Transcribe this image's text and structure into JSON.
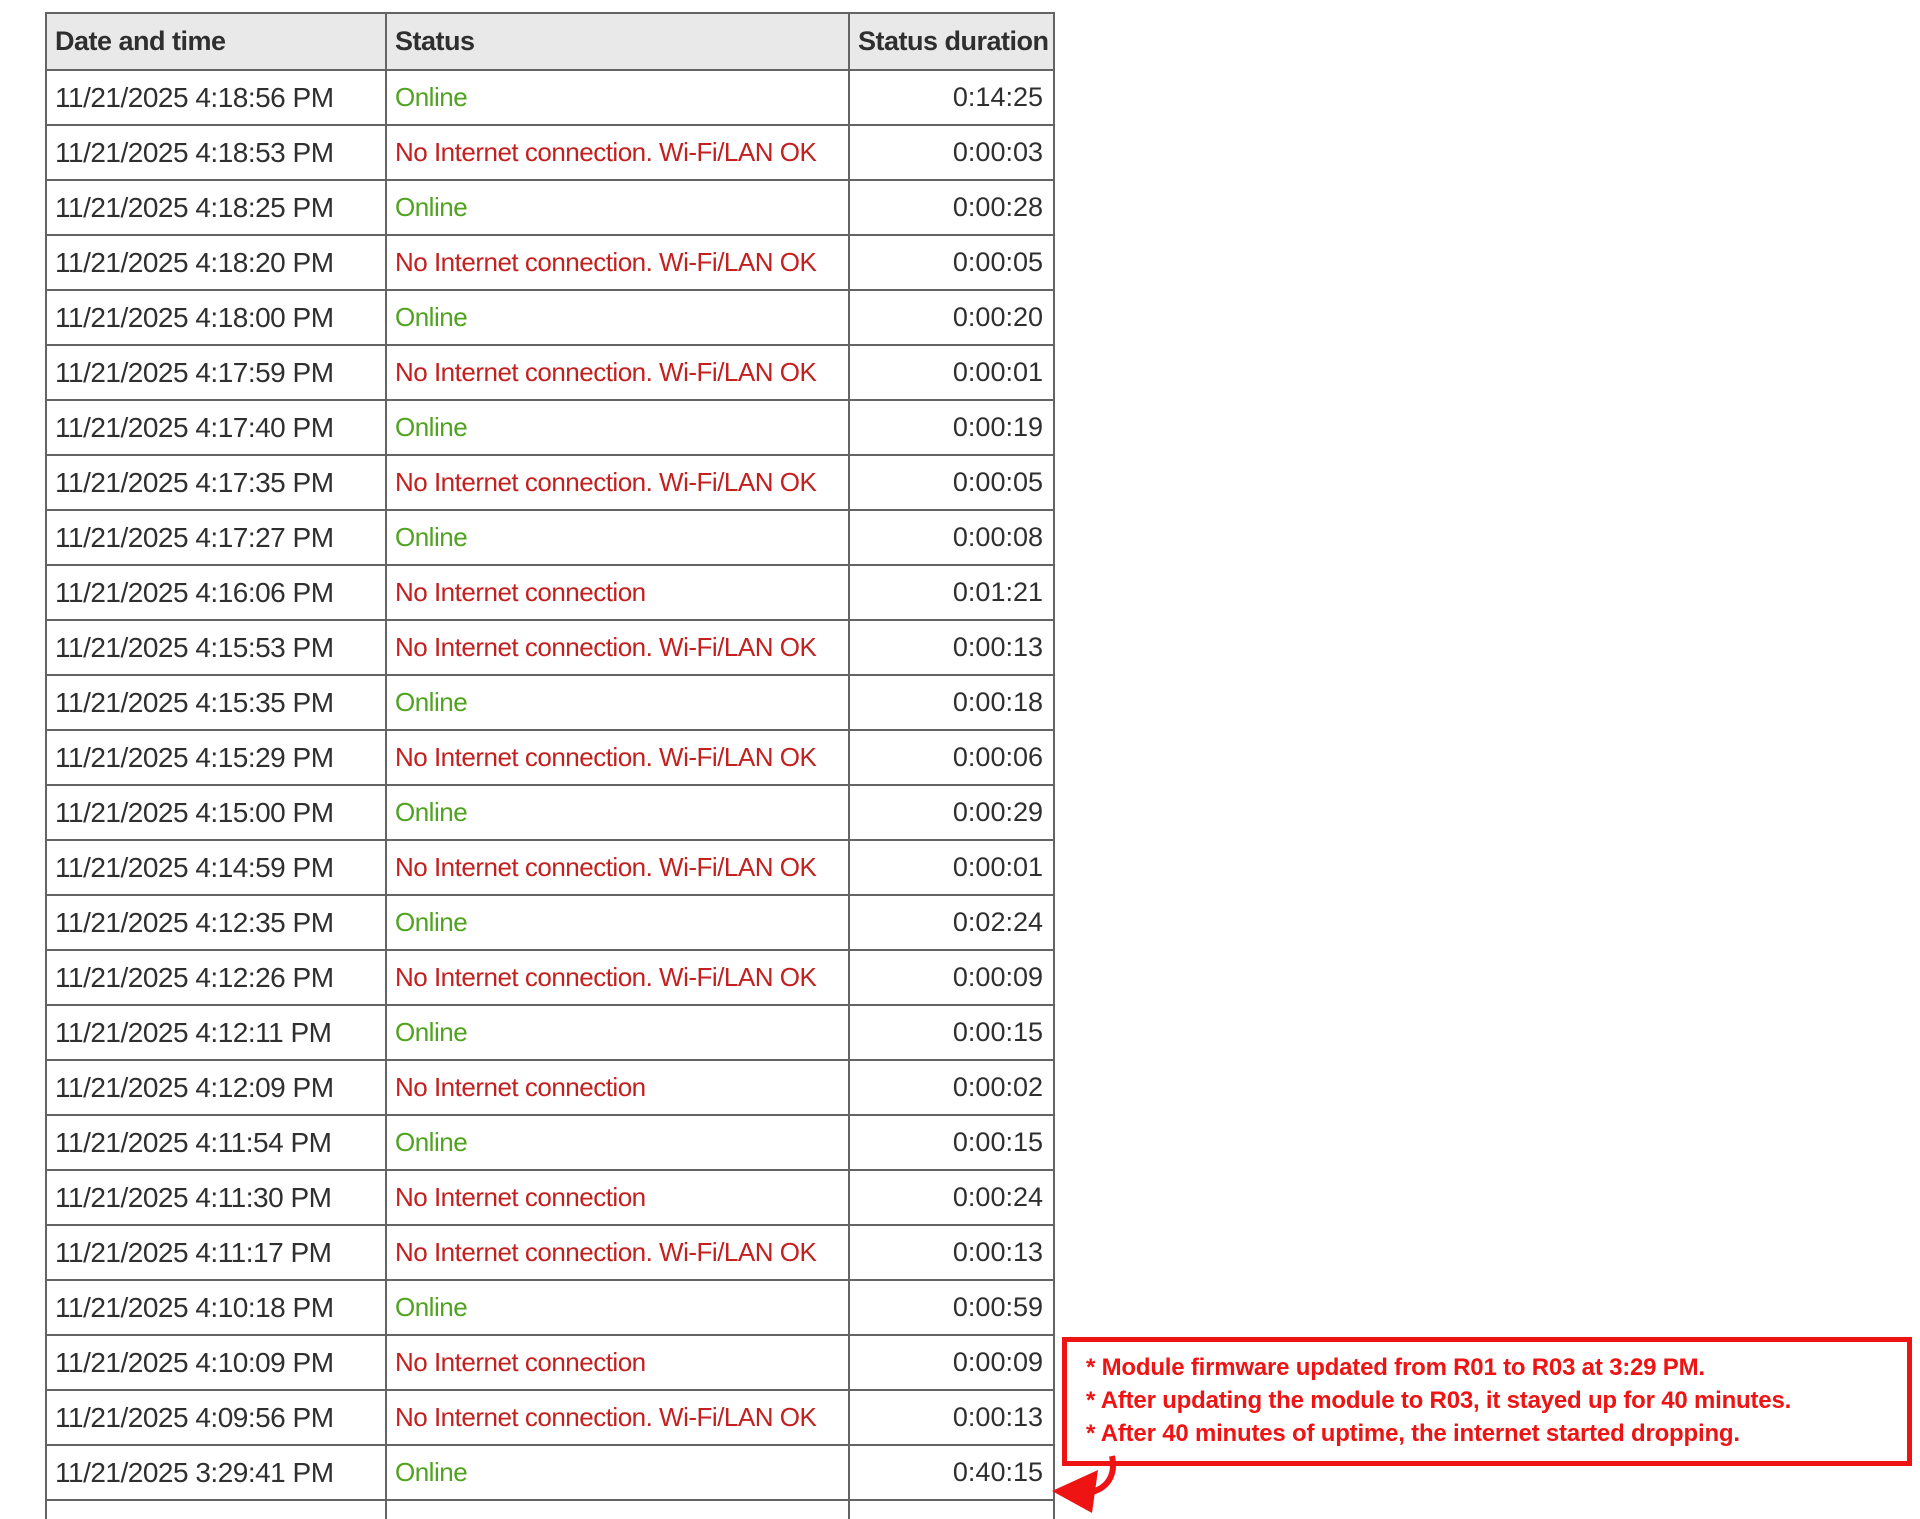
{
  "table": {
    "headers": [
      "Date and time",
      "Status",
      "Status duration"
    ],
    "rows": [
      {
        "datetime": "11/21/2025 4:18:56 PM",
        "status": "Online",
        "duration": "0:14:25"
      },
      {
        "datetime": "11/21/2025 4:18:53 PM",
        "status": "No Internet connection. Wi-Fi/LAN OK",
        "duration": "0:00:03"
      },
      {
        "datetime": "11/21/2025 4:18:25 PM",
        "status": "Online",
        "duration": "0:00:28"
      },
      {
        "datetime": "11/21/2025 4:18:20 PM",
        "status": "No Internet connection. Wi-Fi/LAN OK",
        "duration": "0:00:05"
      },
      {
        "datetime": "11/21/2025 4:18:00 PM",
        "status": "Online",
        "duration": "0:00:20"
      },
      {
        "datetime": "11/21/2025 4:17:59 PM",
        "status": "No Internet connection. Wi-Fi/LAN OK",
        "duration": "0:00:01"
      },
      {
        "datetime": "11/21/2025 4:17:40 PM",
        "status": "Online",
        "duration": "0:00:19"
      },
      {
        "datetime": "11/21/2025 4:17:35 PM",
        "status": "No Internet connection. Wi-Fi/LAN OK",
        "duration": "0:00:05"
      },
      {
        "datetime": "11/21/2025 4:17:27 PM",
        "status": "Online",
        "duration": "0:00:08"
      },
      {
        "datetime": "11/21/2025 4:16:06 PM",
        "status": "No Internet connection",
        "duration": "0:01:21"
      },
      {
        "datetime": "11/21/2025 4:15:53 PM",
        "status": "No Internet connection. Wi-Fi/LAN OK",
        "duration": "0:00:13"
      },
      {
        "datetime": "11/21/2025 4:15:35 PM",
        "status": "Online",
        "duration": "0:00:18"
      },
      {
        "datetime": "11/21/2025 4:15:29 PM",
        "status": "No Internet connection. Wi-Fi/LAN OK",
        "duration": "0:00:06"
      },
      {
        "datetime": "11/21/2025 4:15:00 PM",
        "status": "Online",
        "duration": "0:00:29"
      },
      {
        "datetime": "11/21/2025 4:14:59 PM",
        "status": "No Internet connection. Wi-Fi/LAN OK",
        "duration": "0:00:01"
      },
      {
        "datetime": "11/21/2025 4:12:35 PM",
        "status": "Online",
        "duration": "0:02:24"
      },
      {
        "datetime": "11/21/2025 4:12:26 PM",
        "status": "No Internet connection. Wi-Fi/LAN OK",
        "duration": "0:00:09"
      },
      {
        "datetime": "11/21/2025 4:12:11 PM",
        "status": "Online",
        "duration": "0:00:15"
      },
      {
        "datetime": "11/21/2025 4:12:09 PM",
        "status": "No Internet connection",
        "duration": "0:00:02"
      },
      {
        "datetime": "11/21/2025 4:11:54 PM",
        "status": "Online",
        "duration": "0:00:15"
      },
      {
        "datetime": "11/21/2025 4:11:30 PM",
        "status": "No Internet connection",
        "duration": "0:00:24"
      },
      {
        "datetime": "11/21/2025 4:11:17 PM",
        "status": "No Internet connection. Wi-Fi/LAN OK",
        "duration": "0:00:13"
      },
      {
        "datetime": "11/21/2025 4:10:18 PM",
        "status": "Online",
        "duration": "0:00:59"
      },
      {
        "datetime": "11/21/2025 4:10:09 PM",
        "status": "No Internet connection",
        "duration": "0:00:09"
      },
      {
        "datetime": "11/21/2025 4:09:56 PM",
        "status": "No Internet connection. Wi-Fi/LAN OK",
        "duration": "0:00:13"
      },
      {
        "datetime": "11/21/2025 3:29:41 PM",
        "status": "Online",
        "duration": "0:40:15"
      }
    ],
    "online_status_text": "Online"
  },
  "annotation": {
    "lines": [
      "* Module firmware updated from R01 to R03 at 3:29 PM.",
      "* After updating the module to R03, it stayed up for 40 minutes.",
      "* After 40 minutes of uptime, the internet started dropping."
    ]
  },
  "colors": {
    "online_green": "#4fa31e",
    "offline_red": "#c32020",
    "annotation_red": "#ee1414",
    "header_bg": "#e9e9e9",
    "border_gray": "#646464",
    "text_dark": "#2f2f2f",
    "page_bg": "#ffffff"
  }
}
